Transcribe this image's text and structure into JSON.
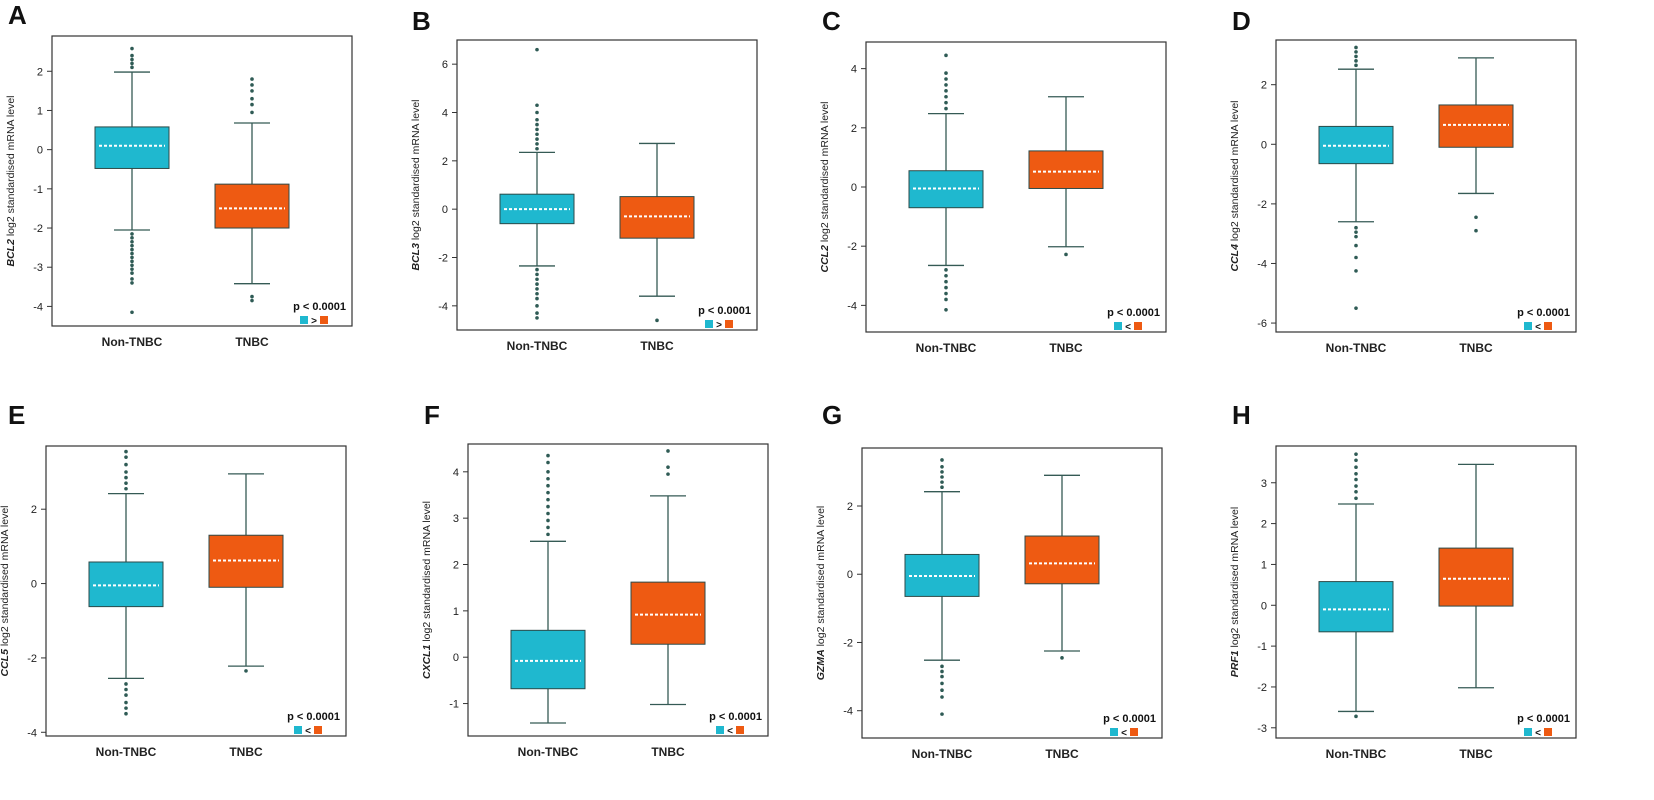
{
  "colors": {
    "non_tnbc": "#1fb8cf",
    "tnbc": "#ee5a12",
    "whisker": "#355a55",
    "outlier": "#2f5b55",
    "median": "#ffffff",
    "frame": "#333333"
  },
  "chart_data": [
    {
      "panel": "A",
      "gene": "BCL2",
      "type": "box",
      "ylabel_suffix": " log2 standardised mRNA level",
      "categories": [
        "Non-TNBC",
        "TNBC"
      ],
      "yticks": [
        -4,
        -3,
        -2,
        -1,
        0,
        1,
        2
      ],
      "ylim": [
        -4.5,
        2.9
      ],
      "pvalue": "p < 0.0001",
      "comparison": ">",
      "series": [
        {
          "name": "Non-TNBC",
          "q1": -0.48,
          "median": 0.1,
          "q3": 0.58,
          "whisker_low": -2.05,
          "whisker_high": 1.98,
          "outliers": [
            2.1,
            2.2,
            2.3,
            2.4,
            2.58,
            -2.15,
            -2.25,
            -2.35,
            -2.45,
            -2.55,
            -2.65,
            -2.75,
            -2.85,
            -2.95,
            -3.05,
            -3.15,
            -3.3,
            -3.4,
            -4.15
          ]
        },
        {
          "name": "TNBC",
          "q1": -2.0,
          "median": -1.5,
          "q3": -0.88,
          "whisker_low": -3.42,
          "whisker_high": 0.68,
          "outliers": [
            0.95,
            1.15,
            1.3,
            1.5,
            1.65,
            1.8,
            -3.75,
            -3.85
          ]
        }
      ]
    },
    {
      "panel": "B",
      "gene": "BCL3",
      "type": "box",
      "ylabel_suffix": " log2 standardised mRNA level",
      "categories": [
        "Non-TNBC",
        "TNBC"
      ],
      "yticks": [
        -4,
        -2,
        0,
        2,
        4,
        6
      ],
      "ylim": [
        -5.0,
        7.0
      ],
      "pvalue": "p < 0.0001",
      "comparison": ">",
      "series": [
        {
          "name": "Non-TNBC",
          "q1": -0.6,
          "median": 0.0,
          "q3": 0.62,
          "whisker_low": -2.35,
          "whisker_high": 2.35,
          "outliers": [
            2.5,
            2.7,
            2.9,
            3.1,
            3.3,
            3.5,
            3.7,
            4.0,
            4.3,
            6.6,
            -2.5,
            -2.7,
            -2.9,
            -3.1,
            -3.3,
            -3.5,
            -3.7,
            -4.0,
            -4.3,
            -4.5
          ]
        },
        {
          "name": "TNBC",
          "q1": -1.2,
          "median": -0.3,
          "q3": 0.52,
          "whisker_low": -3.6,
          "whisker_high": 2.72,
          "outliers": [
            -4.6
          ]
        }
      ]
    },
    {
      "panel": "C",
      "gene": "CCL2",
      "type": "box",
      "ylabel_suffix": " log2 standardised mRNA level",
      "categories": [
        "Non-TNBC",
        "TNBC"
      ],
      "yticks": [
        -4,
        -2,
        0,
        2,
        4
      ],
      "ylim": [
        -4.9,
        4.9
      ],
      "pvalue": "p < 0.0001",
      "comparison": "<",
      "series": [
        {
          "name": "Non-TNBC",
          "q1": -0.7,
          "median": -0.05,
          "q3": 0.55,
          "whisker_low": -2.65,
          "whisker_high": 2.48,
          "outliers": [
            2.65,
            2.85,
            3.05,
            3.25,
            3.45,
            3.65,
            3.85,
            4.45,
            -2.8,
            -3.0,
            -3.2,
            -3.4,
            -3.6,
            -3.8,
            -4.15
          ]
        },
        {
          "name": "TNBC",
          "q1": -0.05,
          "median": 0.52,
          "q3": 1.22,
          "whisker_low": -2.02,
          "whisker_high": 3.05,
          "outliers": [
            -2.28
          ]
        }
      ]
    },
    {
      "panel": "D",
      "gene": "CCL4",
      "type": "box",
      "ylabel_suffix": " log2 standardised mRNA level",
      "categories": [
        "Non-TNBC",
        "TNBC"
      ],
      "yticks": [
        -6,
        -4,
        -2,
        0,
        2
      ],
      "ylim": [
        -6.3,
        3.5
      ],
      "pvalue": "p < 0.0001",
      "comparison": "<",
      "series": [
        {
          "name": "Non-TNBC",
          "q1": -0.65,
          "median": -0.05,
          "q3": 0.6,
          "whisker_low": -2.6,
          "whisker_high": 2.52,
          "outliers": [
            2.65,
            2.8,
            2.95,
            3.1,
            3.25,
            -2.8,
            -2.95,
            -3.1,
            -3.4,
            -3.8,
            -4.25,
            -5.5
          ]
        },
        {
          "name": "TNBC",
          "q1": -0.1,
          "median": 0.65,
          "q3": 1.32,
          "whisker_low": -1.65,
          "whisker_high": 2.9,
          "outliers": [
            -2.45,
            -2.9
          ]
        }
      ]
    },
    {
      "panel": "E",
      "gene": "CCL5",
      "type": "box",
      "ylabel_suffix": " log2 standardised mRNA level",
      "categories": [
        "Non-TNBC",
        "TNBC"
      ],
      "yticks": [
        -4,
        -2,
        0,
        2
      ],
      "ylim": [
        -4.1,
        3.7
      ],
      "pvalue": "p < 0.0001",
      "comparison": "<",
      "series": [
        {
          "name": "Non-TNBC",
          "q1": -0.62,
          "median": -0.05,
          "q3": 0.58,
          "whisker_low": -2.55,
          "whisker_high": 2.42,
          "outliers": [
            2.55,
            2.7,
            2.85,
            3.0,
            3.2,
            3.4,
            3.55,
            -2.7,
            -2.85,
            -3.0,
            -3.2,
            -3.35,
            -3.5
          ]
        },
        {
          "name": "TNBC",
          "q1": -0.1,
          "median": 0.62,
          "q3": 1.3,
          "whisker_low": -2.22,
          "whisker_high": 2.95,
          "outliers": [
            -2.35
          ]
        }
      ]
    },
    {
      "panel": "F",
      "gene": "CXCL1",
      "type": "box",
      "ylabel_suffix": " log2 standardised mRNA level",
      "categories": [
        "Non-TNBC",
        "TNBC"
      ],
      "yticks": [
        -1,
        0,
        1,
        2,
        3,
        4
      ],
      "ylim": [
        -1.7,
        4.6
      ],
      "pvalue": "p < 0.0001",
      "comparison": "<",
      "series": [
        {
          "name": "Non-TNBC",
          "q1": -0.68,
          "median": -0.08,
          "q3": 0.58,
          "whisker_low": -1.42,
          "whisker_high": 2.5,
          "outliers": [
            2.65,
            2.8,
            2.95,
            3.1,
            3.25,
            3.4,
            3.55,
            3.7,
            3.85,
            4.0,
            4.2,
            4.35
          ]
        },
        {
          "name": "TNBC",
          "q1": 0.28,
          "median": 0.92,
          "q3": 1.62,
          "whisker_low": -1.02,
          "whisker_high": 3.48,
          "outliers": [
            3.95,
            4.1,
            4.45
          ]
        }
      ]
    },
    {
      "panel": "G",
      "gene": "GZMA",
      "type": "box",
      "ylabel_suffix": " log2 standardised mRNA level",
      "categories": [
        "Non-TNBC",
        "TNBC"
      ],
      "yticks": [
        -4,
        -2,
        0,
        2
      ],
      "ylim": [
        -4.8,
        3.7
      ],
      "pvalue": "p < 0.0001",
      "comparison": "<",
      "series": [
        {
          "name": "Non-TNBC",
          "q1": -0.65,
          "median": -0.05,
          "q3": 0.58,
          "whisker_low": -2.52,
          "whisker_high": 2.42,
          "outliers": [
            2.55,
            2.7,
            2.85,
            3.0,
            3.15,
            3.35,
            -2.7,
            -2.85,
            -3.0,
            -3.2,
            -3.4,
            -3.6,
            -4.1
          ]
        },
        {
          "name": "TNBC",
          "q1": -0.28,
          "median": 0.32,
          "q3": 1.12,
          "whisker_low": -2.25,
          "whisker_high": 2.9,
          "outliers": [
            -2.45
          ]
        }
      ]
    },
    {
      "panel": "H",
      "gene": "PRF1",
      "type": "box",
      "ylabel_suffix": " log2 standardised mRNA level",
      "categories": [
        "Non-TNBC",
        "TNBC"
      ],
      "yticks": [
        -3,
        -2,
        -1,
        0,
        1,
        2,
        3
      ],
      "ylim": [
        -3.25,
        3.9
      ],
      "pvalue": "p < 0.0001",
      "comparison": "<",
      "series": [
        {
          "name": "Non-TNBC",
          "q1": -0.65,
          "median": -0.1,
          "q3": 0.58,
          "whisker_low": -2.6,
          "whisker_high": 2.48,
          "outliers": [
            2.62,
            2.78,
            2.92,
            3.08,
            3.22,
            3.38,
            3.55,
            3.7,
            -2.72
          ]
        },
        {
          "name": "TNBC",
          "q1": -0.02,
          "median": 0.65,
          "q3": 1.4,
          "whisker_low": -2.02,
          "whisker_high": 3.45,
          "outliers": []
        }
      ]
    }
  ]
}
